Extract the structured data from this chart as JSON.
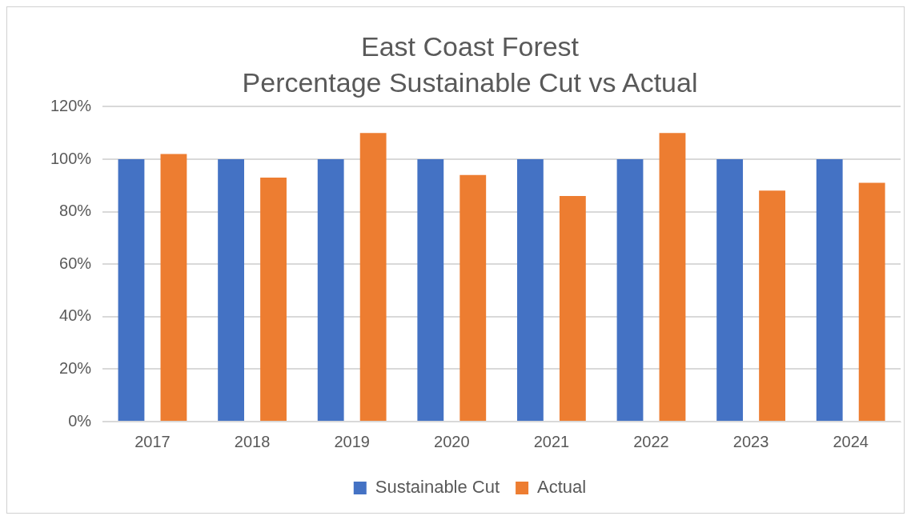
{
  "chart_data": {
    "type": "bar",
    "title": "East Coast Forest",
    "subtitle": "Percentage Sustainable Cut vs Actual",
    "categories": [
      "2017",
      "2018",
      "2019",
      "2020",
      "2021",
      "2022",
      "2023",
      "2024"
    ],
    "series": [
      {
        "name": "Sustainable Cut",
        "color": "#4472c4",
        "values": [
          100,
          100,
          100,
          100,
          100,
          100,
          100,
          100
        ]
      },
      {
        "name": "Actual",
        "color": "#ed7d31",
        "values": [
          102,
          93,
          110,
          94,
          86,
          110,
          88,
          91
        ]
      }
    ],
    "ylim": [
      0,
      120
    ],
    "yticks": [
      {
        "value": 0,
        "label": "0%"
      },
      {
        "value": 20,
        "label": "20%"
      },
      {
        "value": 40,
        "label": "40%"
      },
      {
        "value": 60,
        "label": "60%"
      },
      {
        "value": 80,
        "label": "80%"
      },
      {
        "value": 100,
        "label": "100%"
      },
      {
        "value": 120,
        "label": "120%"
      }
    ],
    "grid": "y",
    "legend": "bottom"
  }
}
